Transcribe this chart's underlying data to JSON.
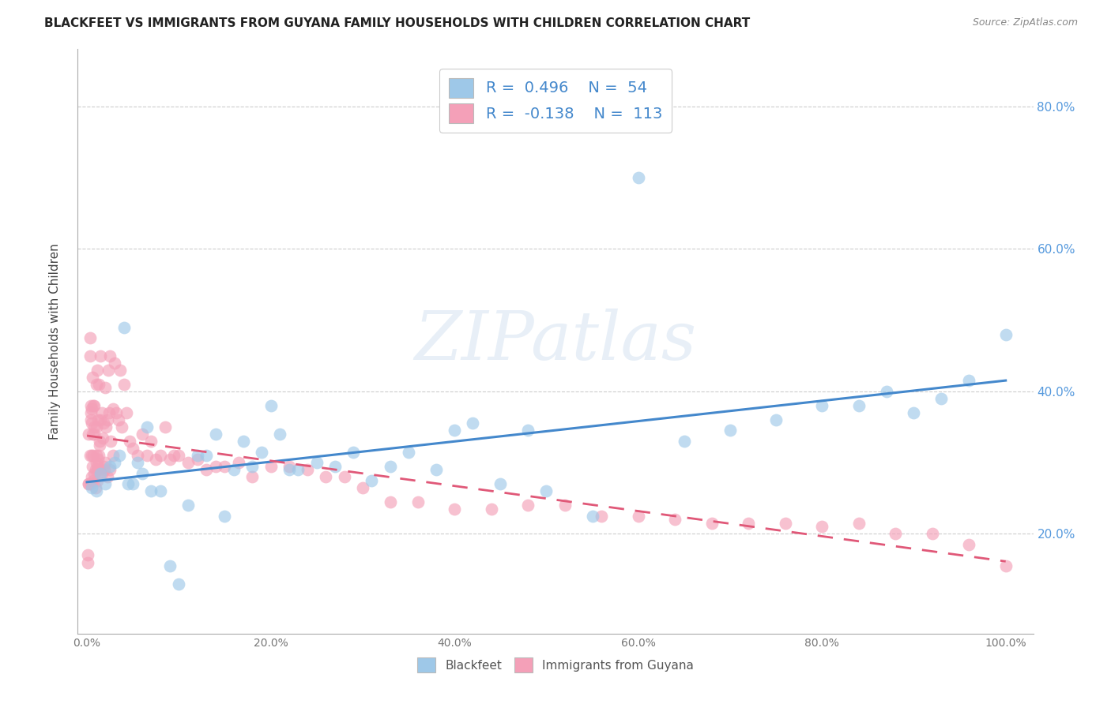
{
  "title": "BLACKFEET VS IMMIGRANTS FROM GUYANA FAMILY HOUSEHOLDS WITH CHILDREN CORRELATION CHART",
  "source": "Source: ZipAtlas.com",
  "ylabel": "Family Households with Children",
  "y_ticks_labels": [
    "20.0%",
    "40.0%",
    "60.0%",
    "80.0%"
  ],
  "y_ticks_vals": [
    0.2,
    0.4,
    0.6,
    0.8
  ],
  "x_ticks_vals": [
    0.0,
    0.2,
    0.4,
    0.6,
    0.8,
    1.0
  ],
  "x_ticks_labels": [
    "0.0%",
    "20.0%",
    "40.0%",
    "60.0%",
    "80.0%",
    "100.0%"
  ],
  "legend_label1": "Blackfeet",
  "legend_label2": "Immigrants from Guyana",
  "R1": 0.496,
  "N1": 54,
  "R2": -0.138,
  "N2": 113,
  "color1": "#9ec8e8",
  "color2": "#f4a0b8",
  "line_color1": "#4488cc",
  "line_color2": "#e05878",
  "watermark_text": "ZIPatlas",
  "xlim": [
    -0.01,
    1.03
  ],
  "ylim": [
    0.06,
    0.88
  ],
  "blackfeet_x": [
    0.005,
    0.01,
    0.015,
    0.02,
    0.025,
    0.03,
    0.035,
    0.04,
    0.045,
    0.05,
    0.055,
    0.06,
    0.065,
    0.07,
    0.08,
    0.09,
    0.1,
    0.11,
    0.12,
    0.13,
    0.14,
    0.15,
    0.16,
    0.17,
    0.18,
    0.19,
    0.2,
    0.21,
    0.22,
    0.23,
    0.25,
    0.27,
    0.29,
    0.31,
    0.33,
    0.35,
    0.38,
    0.4,
    0.42,
    0.45,
    0.48,
    0.5,
    0.55,
    0.6,
    0.65,
    0.7,
    0.75,
    0.8,
    0.84,
    0.87,
    0.9,
    0.93,
    0.96,
    1.0
  ],
  "blackfeet_y": [
    0.265,
    0.26,
    0.285,
    0.27,
    0.295,
    0.3,
    0.31,
    0.49,
    0.27,
    0.27,
    0.3,
    0.285,
    0.35,
    0.26,
    0.26,
    0.155,
    0.13,
    0.24,
    0.31,
    0.31,
    0.34,
    0.225,
    0.29,
    0.33,
    0.295,
    0.315,
    0.38,
    0.34,
    0.29,
    0.29,
    0.3,
    0.295,
    0.315,
    0.275,
    0.295,
    0.315,
    0.29,
    0.345,
    0.355,
    0.27,
    0.345,
    0.26,
    0.225,
    0.7,
    0.33,
    0.345,
    0.36,
    0.38,
    0.38,
    0.4,
    0.37,
    0.39,
    0.415,
    0.48
  ],
  "guyana_x": [
    0.002,
    0.003,
    0.004,
    0.004,
    0.005,
    0.005,
    0.006,
    0.006,
    0.007,
    0.007,
    0.008,
    0.008,
    0.009,
    0.01,
    0.01,
    0.01,
    0.011,
    0.011,
    0.012,
    0.012,
    0.013,
    0.013,
    0.014,
    0.014,
    0.015,
    0.015,
    0.016,
    0.017,
    0.018,
    0.019,
    0.02,
    0.021,
    0.022,
    0.023,
    0.024,
    0.025,
    0.026,
    0.028,
    0.03,
    0.032,
    0.034,
    0.036,
    0.038,
    0.04,
    0.043,
    0.046,
    0.05,
    0.055,
    0.06,
    0.065,
    0.07,
    0.075,
    0.08,
    0.085,
    0.09,
    0.095,
    0.1,
    0.11,
    0.12,
    0.13,
    0.14,
    0.15,
    0.165,
    0.18,
    0.2,
    0.22,
    0.24,
    0.26,
    0.28,
    0.3,
    0.33,
    0.36,
    0.4,
    0.44,
    0.48,
    0.52,
    0.56,
    0.6,
    0.64,
    0.68,
    0.72,
    0.76,
    0.8,
    0.84,
    0.88,
    0.92,
    0.96,
    1.0,
    0.001,
    0.001,
    0.002,
    0.002,
    0.003,
    0.003,
    0.004,
    0.004,
    0.005,
    0.005,
    0.006,
    0.007,
    0.008,
    0.008,
    0.009,
    0.01,
    0.011,
    0.012,
    0.014,
    0.016,
    0.018,
    0.02,
    0.022,
    0.025,
    0.028
  ],
  "guyana_y": [
    0.34,
    0.31,
    0.38,
    0.27,
    0.375,
    0.31,
    0.42,
    0.34,
    0.38,
    0.31,
    0.35,
    0.38,
    0.265,
    0.41,
    0.35,
    0.31,
    0.43,
    0.275,
    0.36,
    0.29,
    0.41,
    0.31,
    0.33,
    0.29,
    0.36,
    0.45,
    0.37,
    0.335,
    0.295,
    0.29,
    0.405,
    0.35,
    0.28,
    0.43,
    0.37,
    0.45,
    0.33,
    0.375,
    0.44,
    0.37,
    0.36,
    0.43,
    0.35,
    0.41,
    0.37,
    0.33,
    0.32,
    0.31,
    0.34,
    0.31,
    0.33,
    0.305,
    0.31,
    0.35,
    0.305,
    0.31,
    0.31,
    0.3,
    0.305,
    0.29,
    0.295,
    0.295,
    0.3,
    0.28,
    0.295,
    0.295,
    0.29,
    0.28,
    0.28,
    0.265,
    0.245,
    0.245,
    0.235,
    0.235,
    0.24,
    0.24,
    0.225,
    0.225,
    0.22,
    0.215,
    0.215,
    0.215,
    0.21,
    0.215,
    0.2,
    0.2,
    0.185,
    0.155,
    0.17,
    0.16,
    0.27,
    0.27,
    0.475,
    0.45,
    0.37,
    0.36,
    0.355,
    0.28,
    0.295,
    0.275,
    0.285,
    0.34,
    0.29,
    0.3,
    0.295,
    0.305,
    0.325,
    0.285,
    0.355,
    0.3,
    0.36,
    0.29,
    0.31
  ]
}
